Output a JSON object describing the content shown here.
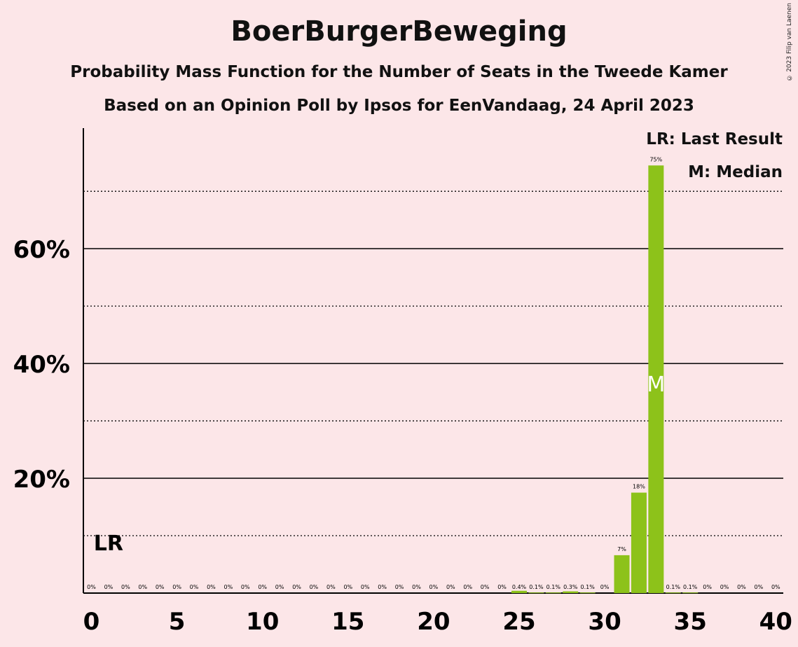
{
  "header": {
    "title": "BoerBurgerBeweging",
    "subtitle1": "Probability Mass Function for the Number of Seats in the Tweede Kamer",
    "subtitle2": "Based on an Opinion Poll by Ipsos for EenVandaag, 24 April 2023",
    "copyright": "© 2023 Filip van Laenen"
  },
  "legend": {
    "last_result": "LR: Last Result",
    "median": "M: Median"
  },
  "colors": {
    "background": "#fce6e8",
    "bar": "#8dc21a",
    "axis": "#000000"
  },
  "chart_data": {
    "type": "bar",
    "categories": [
      0,
      1,
      2,
      3,
      4,
      5,
      6,
      7,
      8,
      9,
      10,
      11,
      12,
      13,
      14,
      15,
      16,
      17,
      18,
      19,
      20,
      21,
      22,
      23,
      24,
      25,
      26,
      27,
      28,
      29,
      30,
      31,
      32,
      33,
      34,
      35,
      36,
      37,
      38,
      39,
      40
    ],
    "values": [
      0,
      0,
      0,
      0,
      0,
      0,
      0,
      0,
      0,
      0,
      0,
      0,
      0,
      0,
      0,
      0,
      0,
      0,
      0,
      0,
      0,
      0,
      0,
      0,
      0,
      0.4,
      0.1,
      0.1,
      0.3,
      0.1,
      0,
      6.6,
      17.5,
      74.5,
      0.1,
      0.1,
      0,
      0,
      0,
      0,
      0
    ],
    "data_labels": [
      "0%",
      "0%",
      "0%",
      "0%",
      "0%",
      "0%",
      "0%",
      "0%",
      "0%",
      "0%",
      "0%",
      "0%",
      "0%",
      "0%",
      "0%",
      "0%",
      "0%",
      "0%",
      "0%",
      "0%",
      "0%",
      "0%",
      "0%",
      "0%",
      "0%",
      "0.4%",
      "0.1%",
      "0.1%",
      "0.3%",
      "0.1%",
      "0%",
      "7%",
      "18%",
      "75%",
      "0.1%",
      "0.1%",
      "0%",
      "0%",
      "0%",
      "0%",
      "0%"
    ],
    "x_ticks": [
      0,
      5,
      10,
      15,
      20,
      25,
      30,
      35,
      40
    ],
    "x_tick_labels": [
      "0",
      "5",
      "10",
      "15",
      "20",
      "25",
      "30",
      "35",
      "40"
    ],
    "y_ticks_major": [
      20,
      40,
      60
    ],
    "y_tick_labels": [
      "20%",
      "40%",
      "60%"
    ],
    "y_gridlines_dotted": [
      10,
      30,
      50,
      70
    ],
    "ylim": [
      0,
      81
    ],
    "last_result": {
      "seats": 1,
      "label": "LR"
    },
    "median": {
      "seats": 33,
      "label": "M"
    },
    "xlabel": "",
    "ylabel": ""
  }
}
